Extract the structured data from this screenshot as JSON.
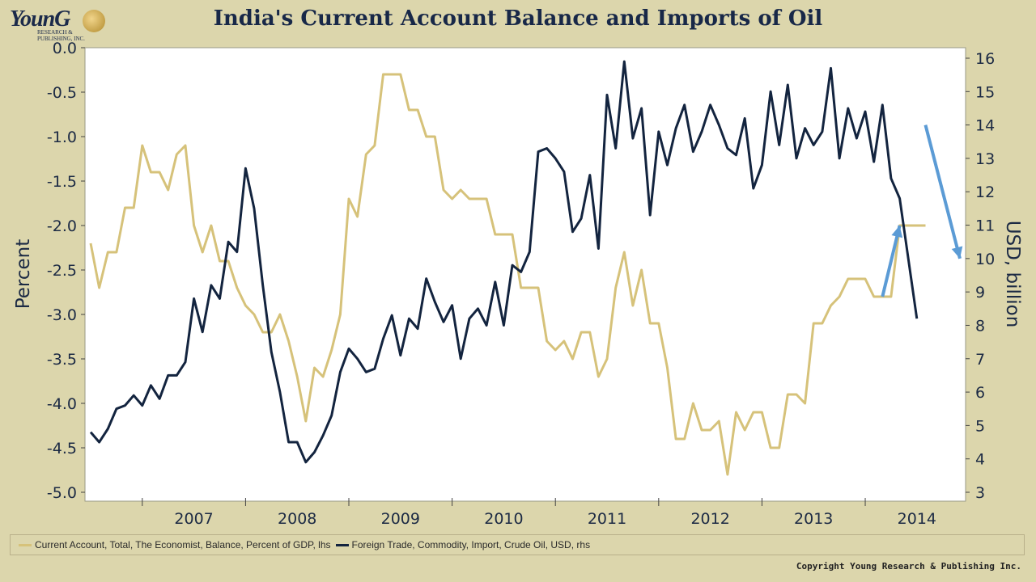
{
  "header": {
    "logo_text": "YounG",
    "logo_sub": "RESEARCH & PUBLISHING, INC.",
    "title": "India's Current Account Balance and Imports of Oil"
  },
  "legend": {
    "current_account": "Current Account, Total, The Economist, Balance, Percent of GDP, lhs",
    "oil_imports": "Foreign Trade, Commodity, Import, Crude Oil, USD, rhs"
  },
  "footer": {
    "copyright": "Copyright Young Research & Publishing Inc."
  },
  "chart_data": {
    "type": "line",
    "title": "India's Current Account Balance and Imports of Oil",
    "ylabel_left": "Percent",
    "ylabel_right": "USD, billion",
    "ylim_left": [
      -5.0,
      0.0
    ],
    "ylim_right": [
      3,
      16
    ],
    "y_ticks_left": [
      "0.0",
      "-0.5",
      "-1.0",
      "-1.5",
      "-2.0",
      "-2.5",
      "-3.0",
      "-3.5",
      "-4.0",
      "-4.5",
      "-5.0"
    ],
    "y_ticks_right": [
      "16",
      "15",
      "14",
      "13",
      "12",
      "11",
      "10",
      "9",
      "8",
      "7",
      "6",
      "5",
      "4",
      "3"
    ],
    "x_start": "2006-07",
    "x_end": "2014-12",
    "year_labels": [
      "2007",
      "2008",
      "2009",
      "2010",
      "2011",
      "2012",
      "2013",
      "2014"
    ],
    "grid": false,
    "legend_position": "bottom",
    "colors": {
      "current_account": "#d6c27a",
      "oil_imports": "#13243f",
      "arrow": "#5b9bd5",
      "plot_bg": "#ffffff"
    },
    "series": [
      {
        "name": "Current Account, Total, The Economist, Balance, Percent of GDP, lhs",
        "axis": "left",
        "values": [
          -2.2,
          -2.7,
          -2.3,
          -2.3,
          -1.8,
          -1.8,
          -1.1,
          -1.4,
          -1.4,
          -1.6,
          -1.2,
          -1.1,
          -2.0,
          -2.3,
          -2.0,
          -2.4,
          -2.4,
          -2.7,
          -2.9,
          -3.0,
          -3.2,
          -3.2,
          -3.0,
          -3.3,
          -3.7,
          -4.2,
          -3.6,
          -3.7,
          -3.4,
          -3.0,
          -1.7,
          -1.9,
          -1.2,
          -1.1,
          -0.3,
          -0.3,
          -0.3,
          -0.7,
          -0.7,
          -1.0,
          -1.0,
          -1.6,
          -1.7,
          -1.6,
          -1.7,
          -1.7,
          -1.7,
          -2.1,
          -2.1,
          -2.1,
          -2.7,
          -2.7,
          -2.7,
          -3.3,
          -3.4,
          -3.3,
          -3.5,
          -3.2,
          -3.2,
          -3.7,
          -3.5,
          -2.7,
          -2.3,
          -2.9,
          -2.5,
          -3.1,
          -3.1,
          -3.6,
          -4.4,
          -4.4,
          -4.0,
          -4.3,
          -4.3,
          -4.2,
          -4.8,
          -4.1,
          -4.3,
          -4.1,
          -4.1,
          -4.5,
          -4.5,
          -3.9,
          -3.9,
          -4.0,
          -3.1,
          -3.1,
          -2.9,
          -2.8,
          -2.6,
          -2.6,
          -2.6,
          -2.8,
          -2.8,
          -2.8,
          -2.0,
          -2.0,
          -2.0,
          -2.0
        ]
      },
      {
        "name": "Foreign Trade, Commodity, Import, Crude Oil, USD, rhs",
        "axis": "right",
        "values": [
          4.8,
          4.5,
          4.9,
          5.5,
          5.6,
          5.9,
          5.6,
          6.2,
          5.8,
          6.5,
          6.5,
          6.9,
          8.8,
          7.8,
          9.2,
          8.8,
          10.5,
          10.2,
          12.7,
          11.5,
          9.2,
          7.2,
          6.0,
          4.5,
          4.5,
          3.9,
          4.2,
          4.7,
          5.3,
          6.6,
          7.3,
          7.0,
          6.6,
          6.7,
          7.6,
          8.3,
          7.1,
          8.2,
          7.9,
          9.4,
          8.7,
          8.1,
          8.6,
          7.0,
          8.2,
          8.5,
          8.0,
          9.3,
          8.0,
          9.8,
          9.6,
          10.2,
          13.2,
          13.3,
          13.0,
          12.6,
          10.8,
          11.2,
          12.5,
          10.3,
          14.9,
          13.3,
          15.9,
          13.6,
          14.5,
          11.3,
          13.8,
          12.8,
          13.9,
          14.6,
          13.2,
          13.8,
          14.6,
          14.0,
          13.3,
          13.1,
          14.2,
          12.1,
          12.8,
          15.0,
          13.4,
          15.2,
          13.0,
          13.9,
          13.4,
          13.8,
          15.7,
          13.0,
          14.5,
          13.6,
          14.4,
          12.9,
          14.6,
          12.4,
          11.8,
          10.0,
          8.2
        ]
      }
    ],
    "annotations": [
      {
        "type": "arrow",
        "direction": "up",
        "series": "current_account",
        "x_start": "2014-03",
        "x_end": "2014-05",
        "y_start": -2.8,
        "y_end": -2.0
      },
      {
        "type": "arrow",
        "direction": "down",
        "series": "oil_imports",
        "x_start": "2014-08",
        "x_end": "2014-12",
        "y_start": 14.0,
        "y_end": 10.0
      }
    ]
  }
}
